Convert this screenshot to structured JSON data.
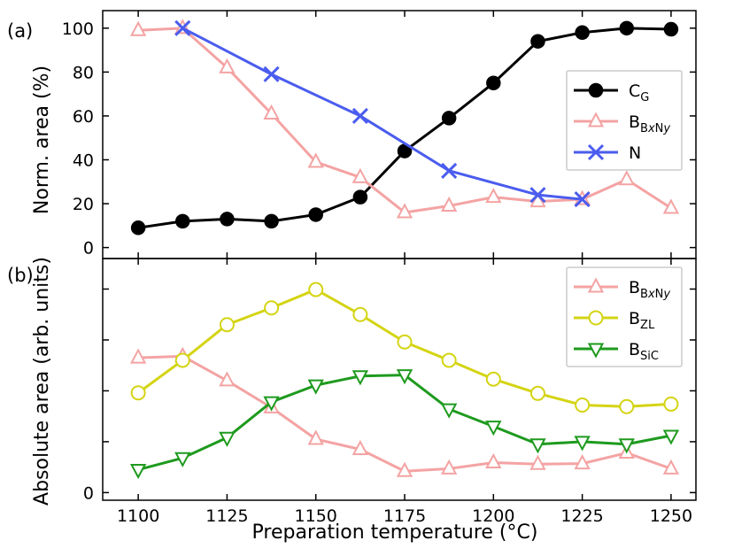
{
  "chart_data": [
    {
      "type": "line",
      "panel_label": "(a)",
      "ylabel": "Norm. area (%)",
      "xlabel": "",
      "xlim": [
        1090,
        1257
      ],
      "ylim": [
        -5,
        108
      ],
      "yticks": [
        0,
        20,
        40,
        60,
        80,
        100
      ],
      "legend_position": "right",
      "series": [
        {
          "name": "C_G",
          "label_main": "C",
          "label_sub": "G",
          "label_italic": "",
          "label_sub2": "",
          "color": "#000000",
          "marker": "circle-filled",
          "x": [
            1100,
            1112.5,
            1125,
            1137.5,
            1150,
            1162.5,
            1175,
            1187.5,
            1200,
            1212.5,
            1225,
            1237.5,
            1250
          ],
          "values": [
            9,
            12,
            13,
            12,
            15,
            23,
            44,
            59,
            75,
            94,
            98,
            100,
            99.5
          ]
        },
        {
          "name": "B_BxNy",
          "label_main": "B",
          "label_sub": "B",
          "label_italic": "x",
          "label_sub2": "N",
          "label_italic2": "y",
          "color": "#f4a3a3",
          "marker": "triangle-up-open",
          "x": [
            1100,
            1112.5,
            1125,
            1137.5,
            1150,
            1162.5,
            1175,
            1187.5,
            1200,
            1212.5,
            1225,
            1237.5,
            1250
          ],
          "values": [
            99,
            100,
            82,
            61,
            39,
            32,
            16,
            19,
            23,
            21,
            22,
            31,
            18
          ]
        },
        {
          "name": "N",
          "label_main": "N",
          "label_sub": "",
          "label_italic": "",
          "label_sub2": "",
          "color": "#4a5cee",
          "marker": "x",
          "x": [
            1112.5,
            1137.5,
            1162.5,
            1187.5,
            1212.5,
            1225
          ],
          "values": [
            100,
            79,
            60,
            35,
            24,
            22
          ]
        }
      ]
    },
    {
      "type": "line",
      "panel_label": "(b)",
      "ylabel": "Absolute area (arb. units)",
      "xlabel": "Preparation temperature (°C)",
      "xlim": [
        1090,
        1257
      ],
      "ylim": [
        -0.15,
        4.6
      ],
      "yticks": [
        0
      ],
      "legend_position": "top-right",
      "xticks": [
        1100,
        1125,
        1150,
        1175,
        1200,
        1225,
        1250
      ],
      "series": [
        {
          "name": "B_BxNy",
          "label_main": "B",
          "label_sub": "B",
          "label_italic": "x",
          "label_sub2": "N",
          "label_italic2": "y",
          "color": "#f4a3a3",
          "marker": "triangle-up-open",
          "x": [
            1100,
            1112.5,
            1125,
            1137.5,
            1150,
            1162.5,
            1175,
            1187.5,
            1200,
            1212.5,
            1225,
            1237.5,
            1250
          ],
          "values": [
            2.65,
            2.68,
            2.2,
            1.67,
            1.05,
            0.85,
            0.42,
            0.47,
            0.59,
            0.56,
            0.57,
            0.78,
            0.47
          ]
        },
        {
          "name": "B_ZL",
          "label_main": "B",
          "label_sub": "ZL",
          "label_italic": "",
          "label_sub2": "",
          "color": "#d4d414",
          "marker": "circle-open",
          "x": [
            1100,
            1112.5,
            1125,
            1137.5,
            1150,
            1162.5,
            1175,
            1187.5,
            1200,
            1212.5,
            1225,
            1237.5,
            1250
          ],
          "values": [
            1.96,
            2.6,
            3.3,
            3.63,
            3.99,
            3.5,
            2.96,
            2.6,
            2.23,
            1.95,
            1.72,
            1.69,
            1.74
          ]
        },
        {
          "name": "B_SiC",
          "label_main": "B",
          "label_sub": "SiC",
          "label_italic": "",
          "label_sub2": "",
          "color": "#1e9a1e",
          "marker": "triangle-down-open",
          "x": [
            1100,
            1112.5,
            1125,
            1137.5,
            1150,
            1162.5,
            1175,
            1187.5,
            1200,
            1212.5,
            1225,
            1237.5,
            1250
          ],
          "values": [
            0.45,
            0.68,
            1.08,
            1.78,
            2.11,
            2.29,
            2.31,
            1.64,
            1.3,
            0.95,
            1.0,
            0.95,
            1.12
          ]
        }
      ]
    }
  ]
}
